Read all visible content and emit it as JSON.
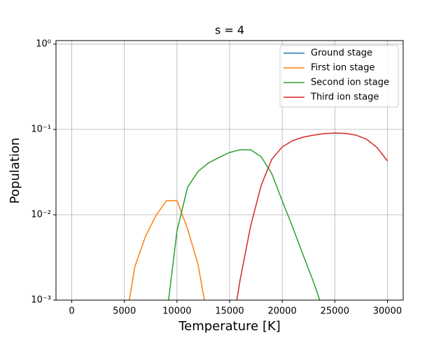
{
  "chart_data": {
    "type": "line",
    "title": "s = 4",
    "xlabel": "Temperature [K]",
    "ylabel": "Population",
    "x": [
      0,
      1000,
      2000,
      3000,
      4000,
      5000,
      6000,
      7000,
      8000,
      9000,
      10000,
      11000,
      12000,
      13000,
      14000,
      15000,
      16000,
      17000,
      18000,
      19000,
      20000,
      21000,
      22000,
      23000,
      24000,
      25000,
      26000,
      27000,
      28000,
      29000,
      30000
    ],
    "series": [
      {
        "name": "Ground stage",
        "color": "#1f77b4",
        "values": [
          null,
          null,
          null,
          null,
          null,
          null,
          null,
          null,
          null,
          null,
          null,
          null,
          null,
          null,
          null,
          null,
          null,
          null,
          null,
          null,
          null,
          null,
          null,
          null,
          null,
          null,
          null,
          null,
          null,
          null,
          null
        ]
      },
      {
        "name": "First ion stage",
        "color": "#ff7f0e",
        "values": [
          null,
          null,
          null,
          null,
          null,
          0.00045,
          0.00247,
          0.00557,
          0.0098,
          0.0146,
          0.0147,
          0.00686,
          0.00262,
          0.00053,
          null,
          null,
          null,
          null,
          null,
          null,
          null,
          null,
          null,
          null,
          null,
          null,
          null,
          null,
          null,
          null,
          null
        ]
      },
      {
        "name": "Second ion stage",
        "color": "#2ca02c",
        "values": [
          null,
          null,
          null,
          null,
          null,
          null,
          null,
          null,
          null,
          0.00063,
          0.00648,
          0.0209,
          0.0322,
          0.0405,
          0.047,
          0.0537,
          0.0578,
          0.0578,
          0.0479,
          0.0305,
          0.0146,
          0.00712,
          0.00335,
          0.0016,
          0.0007,
          null,
          null,
          null,
          null,
          null,
          null
        ]
      },
      {
        "name": "Third ion stage",
        "color": "#d62728",
        "values": [
          null,
          null,
          null,
          null,
          null,
          null,
          null,
          null,
          null,
          null,
          null,
          null,
          null,
          null,
          null,
          0.0003,
          0.00173,
          0.0074,
          0.0221,
          0.0445,
          0.0624,
          0.074,
          0.0813,
          0.0859,
          0.0893,
          0.0909,
          0.09,
          0.0859,
          0.0771,
          0.0617,
          0.0428
        ]
      }
    ],
    "xlim": [
      -1500,
      31500
    ],
    "xticks": [
      0,
      5000,
      10000,
      15000,
      20000,
      25000,
      30000
    ],
    "ylim": [
      0.001,
      1.1
    ],
    "ylog": true,
    "yticks": [
      {
        "value": 0.001,
        "label": "10⁻³"
      },
      {
        "value": 0.01,
        "label": "10⁻²"
      },
      {
        "value": 0.1,
        "label": "10⁻¹"
      },
      {
        "value": 1,
        "label": "10⁰"
      }
    ],
    "grid": true,
    "legend": "upper right"
  }
}
